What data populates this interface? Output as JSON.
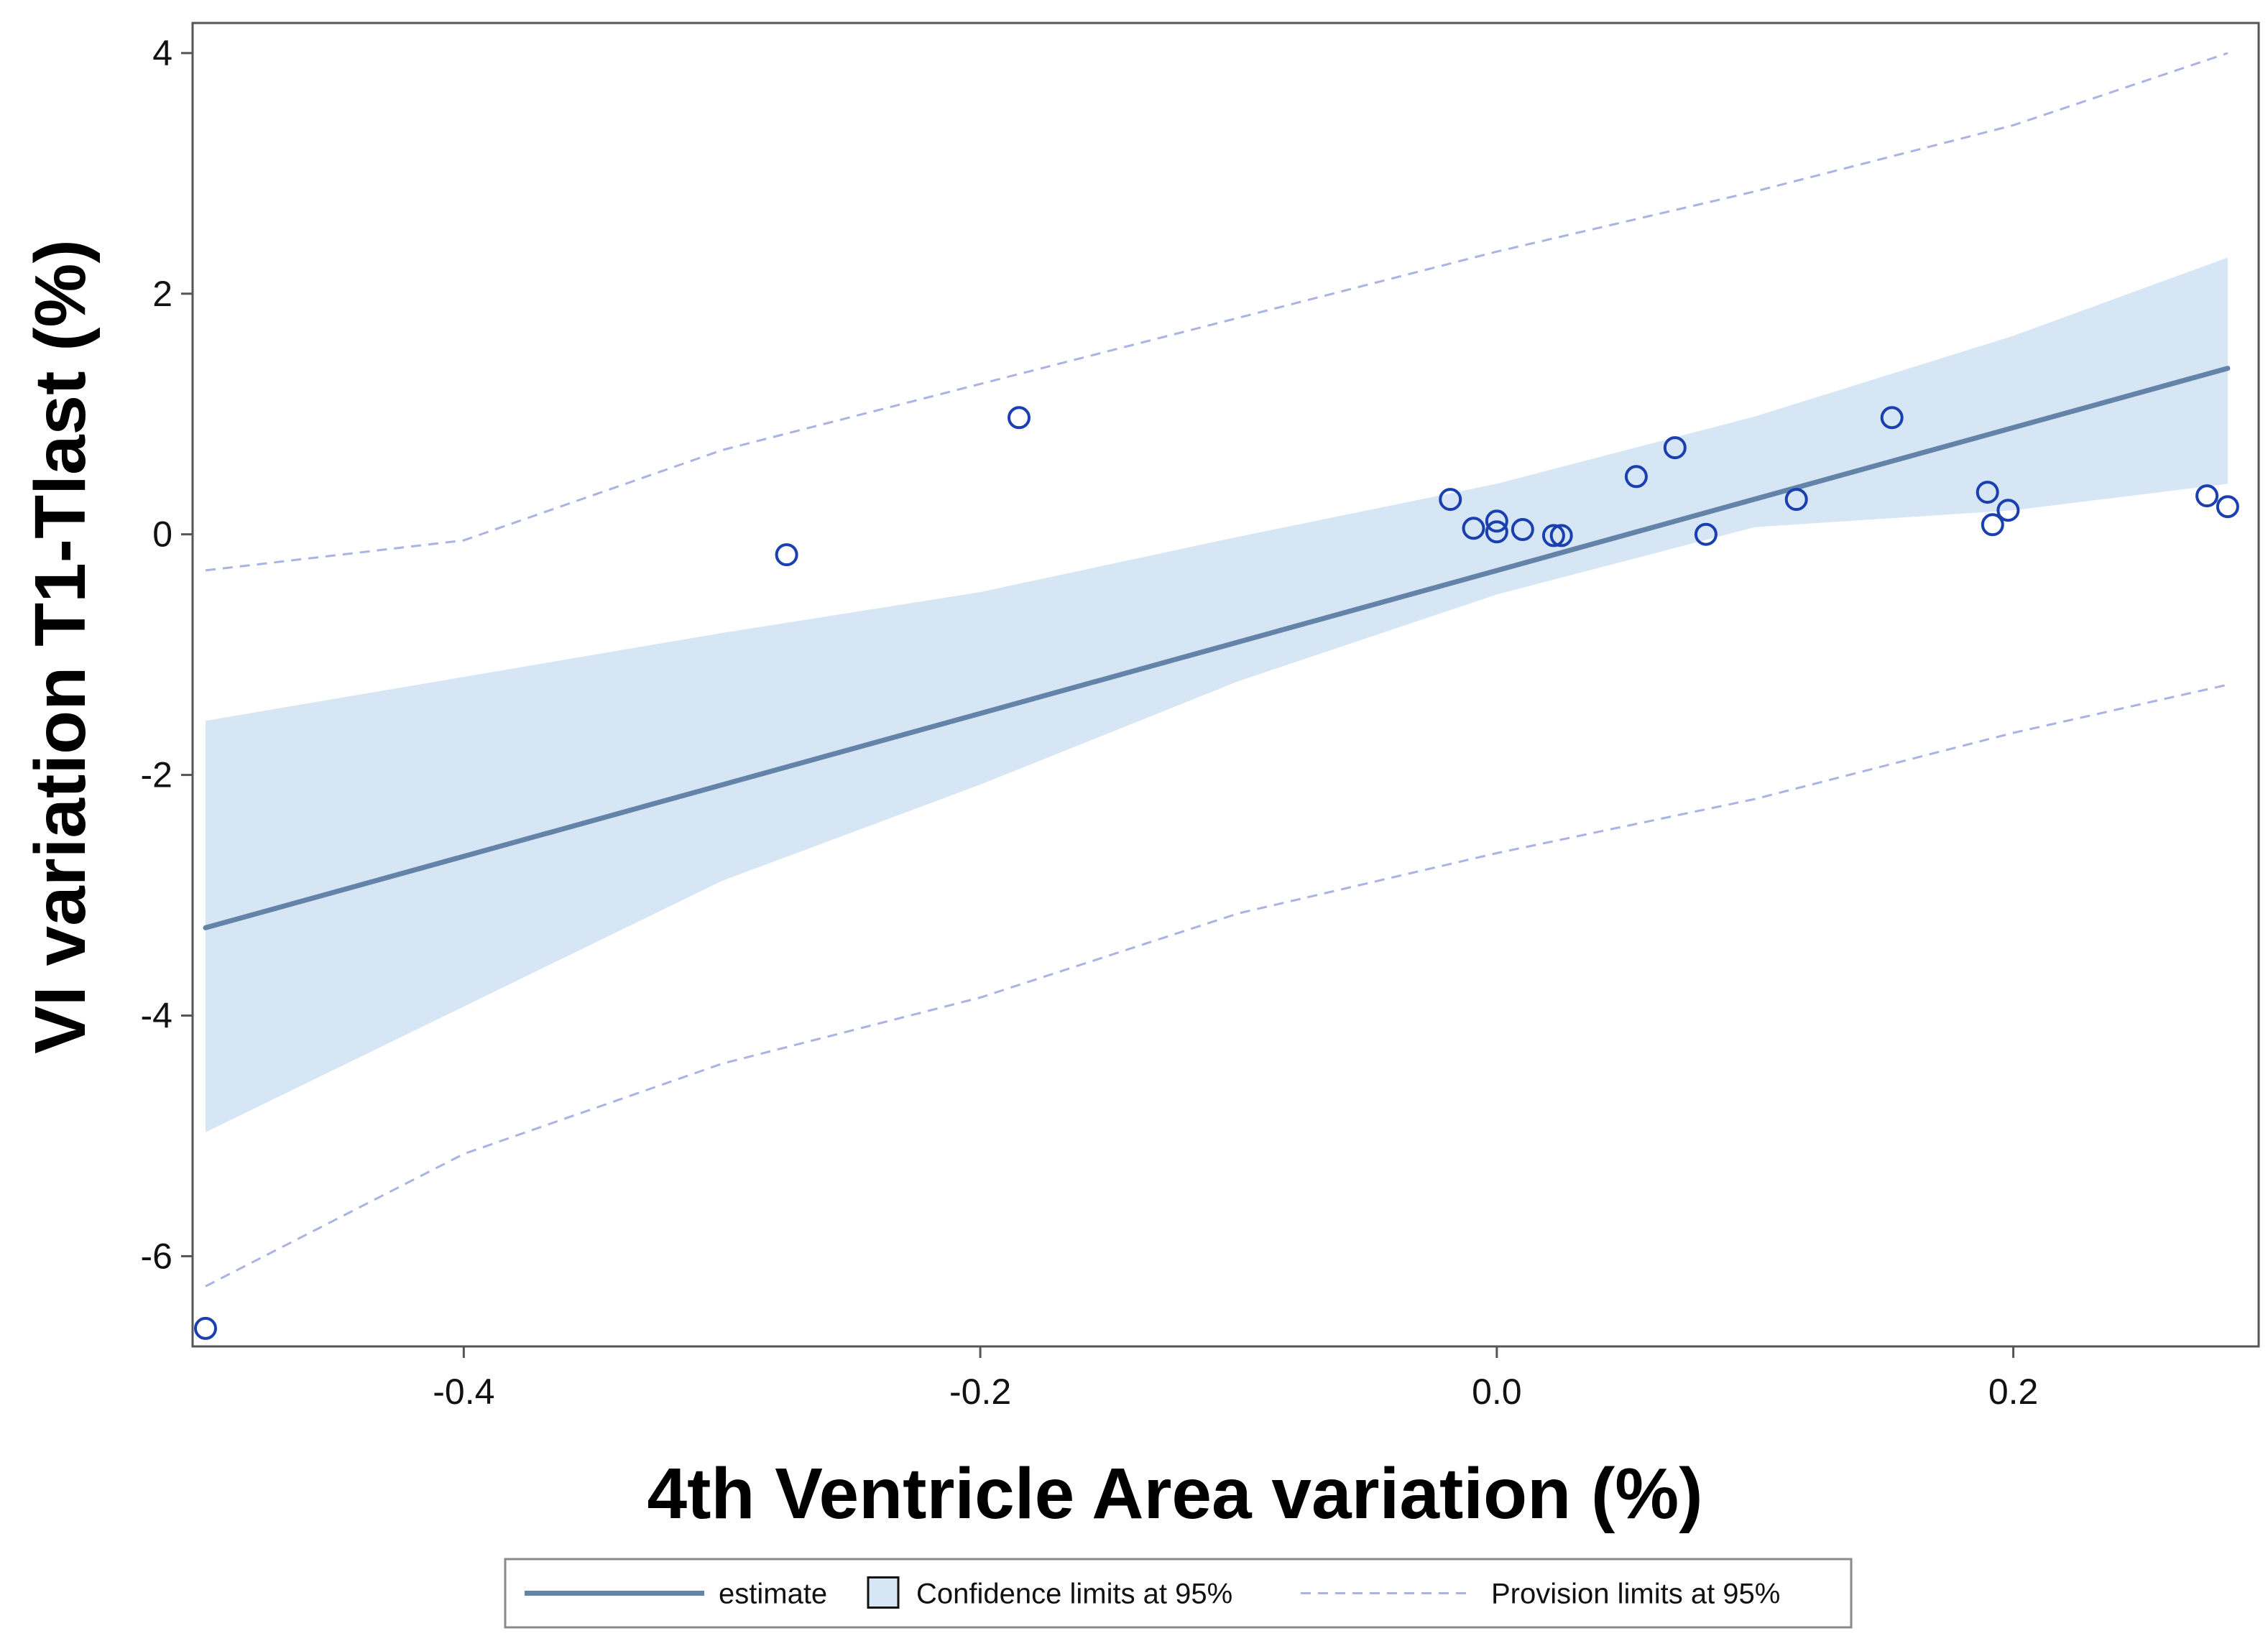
{
  "colors": {
    "estimate": "#6383a8",
    "confidence": "#d6e6f5",
    "prediction": "#a9b4e4",
    "points": "#1a3fb0",
    "frame": "#555555"
  },
  "chart_data": {
    "type": "scatter",
    "title": "",
    "xlabel": "4th Ventricle Area variation (%)",
    "ylabel": "VI variation T1-Tlast (%)",
    "xlim": [
      -0.505,
      0.295
    ],
    "ylim": [
      -6.75,
      4.25
    ],
    "x_ticks": [
      -0.4,
      -0.2,
      0.0,
      0.2
    ],
    "x_tick_labels": [
      "-0.4",
      "-0.2",
      "0.0",
      "0.2"
    ],
    "y_ticks": [
      -6,
      -4,
      -2,
      0,
      2,
      4
    ],
    "y_tick_labels": [
      "-6",
      "-4",
      "-2",
      "0",
      "2",
      "4"
    ],
    "points": [
      {
        "x": -0.5,
        "y": -6.6
      },
      {
        "x": -0.275,
        "y": -0.17
      },
      {
        "x": -0.185,
        "y": 0.97
      },
      {
        "x": -0.018,
        "y": 0.29
      },
      {
        "x": -0.009,
        "y": 0.05
      },
      {
        "x": 0.0,
        "y": 0.11
      },
      {
        "x": 0.0,
        "y": 0.02
      },
      {
        "x": 0.01,
        "y": 0.04
      },
      {
        "x": 0.022,
        "y": -0.01
      },
      {
        "x": 0.025,
        "y": -0.01
      },
      {
        "x": 0.054,
        "y": 0.48
      },
      {
        "x": 0.069,
        "y": 0.72
      },
      {
        "x": 0.081,
        "y": 0.0
      },
      {
        "x": 0.116,
        "y": 0.29
      },
      {
        "x": 0.153,
        "y": 0.97
      },
      {
        "x": 0.19,
        "y": 0.35
      },
      {
        "x": 0.192,
        "y": 0.08
      },
      {
        "x": 0.198,
        "y": 0.2
      },
      {
        "x": 0.275,
        "y": 0.32
      },
      {
        "x": 0.283,
        "y": 0.23
      }
    ],
    "series": [
      {
        "name": "estimate",
        "x": [
          -0.5,
          0.283
        ],
        "y": [
          -3.27,
          1.38
        ]
      },
      {
        "name": "Confidence limits at 95% (upper)",
        "x": [
          -0.5,
          -0.3,
          -0.2,
          -0.1,
          0.0,
          0.1,
          0.2,
          0.283
        ],
        "y": [
          -1.55,
          -0.82,
          -0.48,
          -0.02,
          0.42,
          0.98,
          1.65,
          2.3
        ]
      },
      {
        "name": "Confidence limits at 95% (lower)",
        "x": [
          -0.5,
          -0.3,
          -0.2,
          -0.1,
          0.0,
          0.1,
          0.2,
          0.283
        ],
        "y": [
          -4.97,
          -2.88,
          -2.08,
          -1.22,
          -0.5,
          0.06,
          0.2,
          0.42
        ]
      },
      {
        "name": "Provision limits at 95% (upper)",
        "x": [
          -0.5,
          -0.4,
          -0.3,
          -0.2,
          -0.1,
          0.0,
          0.1,
          0.2,
          0.283
        ],
        "y": [
          -0.3,
          -0.05,
          0.7,
          1.25,
          1.8,
          2.35,
          2.85,
          3.4,
          4.0
        ]
      },
      {
        "name": "Provision limits at 95% (lower)",
        "x": [
          -0.5,
          -0.4,
          -0.3,
          -0.2,
          -0.1,
          0.0,
          0.1,
          0.2,
          0.283
        ],
        "y": [
          -6.25,
          -5.15,
          -4.4,
          -3.85,
          -3.15,
          -2.65,
          -2.2,
          -1.65,
          -1.25
        ]
      }
    ],
    "legend": {
      "placement": "bottom",
      "items": [
        {
          "kind": "line",
          "label": "estimate"
        },
        {
          "kind": "box",
          "label": "Confidence limits at 95%"
        },
        {
          "kind": "dash",
          "label": "Provision limits at 95%"
        }
      ]
    },
    "grid": false
  }
}
